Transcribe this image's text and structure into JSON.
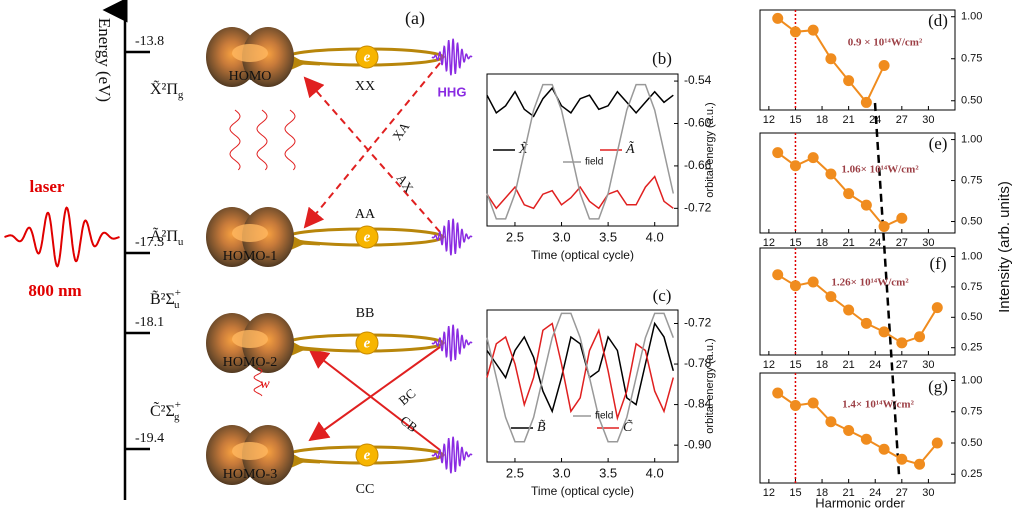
{
  "diagram": {
    "panel_label": "(a)",
    "axis_label": "Energy (eV)",
    "levels": [
      {
        "energy": "-13.8",
        "state": {
          "main": "X̃²Π",
          "sub": "g"
        }
      },
      {
        "energy": "-17.3",
        "state": {
          "main": "Ã²Π",
          "sub": "u"
        }
      },
      {
        "energy": "-18.1",
        "state": {
          "main": "B̃²Σ",
          "sub": "u",
          "sup": "+"
        }
      },
      {
        "energy": "-19.4",
        "state": {
          "main": "C̃²Σ",
          "sub": "g",
          "sup": "+"
        }
      }
    ],
    "orbitals": [
      "HOMO",
      "HOMO-1",
      "HOMO-2",
      "HOMO-3"
    ],
    "electron": "e",
    "channels": {
      "XX": "XX",
      "AA": "AA",
      "BB": "BB",
      "CC": "CC",
      "XA": "XA",
      "AX": "AX",
      "BC": "BC",
      "CB": "CB"
    },
    "hhg": "HHG",
    "laser": "laser",
    "wavelength": "800 nm",
    "coupling": "w"
  },
  "shared": {
    "ylabel": "Intensity (arb. units)",
    "xlabel": "Harmonic order"
  },
  "chart_data": [
    {
      "type": "line",
      "panel_label": "(b)",
      "xlabel": "Time (optical cycle)",
      "ylabel": "orbital energy (a.u.)",
      "x": [
        2.2,
        2.3,
        2.4,
        2.5,
        2.6,
        2.7,
        2.8,
        2.9,
        3.0,
        3.1,
        3.2,
        3.3,
        3.4,
        3.5,
        3.6,
        3.7,
        3.8,
        3.9,
        4.0,
        4.1,
        4.2
      ],
      "xlim": [
        2.2,
        4.25
      ],
      "xticks": [
        2.5,
        {
          "value": 3,
          "label": "3.0"
        },
        3.5,
        {
          "value": 4,
          "label": "4.0"
        }
      ],
      "ylim": [
        -0.745,
        -0.53
      ],
      "yticks": [
        -0.54,
        {
          "value": -0.6,
          "label": "-0.60"
        },
        -0.66,
        -0.72
      ],
      "series": [
        {
          "name": "X̃",
          "color": "#000000",
          "values": [
            -0.56,
            -0.585,
            -0.575,
            -0.555,
            -0.58,
            -0.59,
            -0.565,
            -0.55,
            -0.575,
            -0.585,
            -0.565,
            -0.56,
            -0.58,
            -0.575,
            -0.555,
            -0.57,
            -0.585,
            -0.57,
            -0.555,
            -0.57,
            -0.56
          ]
        },
        {
          "name": "Ã",
          "color": "#e02020",
          "values": [
            -0.7,
            -0.72,
            -0.705,
            -0.69,
            -0.715,
            -0.72,
            -0.7,
            -0.695,
            -0.715,
            -0.705,
            -0.69,
            -0.71,
            -0.72,
            -0.7,
            -0.695,
            -0.715,
            -0.715,
            -0.69,
            -0.675,
            -0.71,
            -0.72
          ]
        },
        {
          "name": "field",
          "color": "#999999",
          "values": [
            -0.699,
            -0.735,
            -0.735,
            -0.699,
            -0.64,
            -0.581,
            -0.545,
            -0.545,
            -0.581,
            -0.64,
            -0.699,
            -0.735,
            -0.735,
            -0.699,
            -0.64,
            -0.581,
            -0.545,
            -0.545,
            -0.581,
            -0.64,
            -0.699
          ]
        }
      ]
    },
    {
      "type": "line",
      "panel_label": "(c)",
      "xlabel": "Time (optical cycle)",
      "ylabel": "orbital energy (a.u.)",
      "x": [
        2.2,
        2.3,
        2.4,
        2.5,
        2.6,
        2.7,
        2.8,
        2.9,
        3.0,
        3.1,
        3.2,
        3.3,
        3.4,
        3.5,
        3.6,
        3.7,
        3.8,
        3.9,
        4.0,
        4.1,
        4.2
      ],
      "xlim": [
        2.2,
        4.25
      ],
      "xticks": [
        2.5,
        {
          "value": 3,
          "label": "3.0"
        },
        3.5,
        {
          "value": 4,
          "label": "4.0"
        }
      ],
      "ylim": [
        -0.925,
        -0.7
      ],
      "yticks": [
        -0.72,
        -0.78,
        -0.84,
        {
          "value": -0.9,
          "label": "-0.90"
        }
      ],
      "series": [
        {
          "name": "B̃",
          "color": "#000000",
          "values": [
            -0.76,
            -0.78,
            -0.8,
            -0.76,
            -0.74,
            -0.77,
            -0.82,
            -0.85,
            -0.8,
            -0.74,
            -0.75,
            -0.8,
            -0.79,
            -0.74,
            -0.76,
            -0.83,
            -0.84,
            -0.78,
            -0.72,
            -0.74,
            -0.79
          ]
        },
        {
          "name": "C̃",
          "color": "#e02020",
          "values": [
            -0.8,
            -0.75,
            -0.74,
            -0.78,
            -0.84,
            -0.8,
            -0.73,
            -0.72,
            -0.78,
            -0.85,
            -0.83,
            -0.76,
            -0.73,
            -0.79,
            -0.86,
            -0.82,
            -0.75,
            -0.76,
            -0.82,
            -0.85,
            -0.8
          ]
        },
        {
          "name": "field",
          "color": "#999999",
          "values": [
            -0.741,
            -0.8,
            -0.859,
            -0.895,
            -0.895,
            -0.859,
            -0.8,
            -0.741,
            -0.705,
            -0.705,
            -0.741,
            -0.8,
            -0.859,
            -0.895,
            -0.895,
            -0.859,
            -0.8,
            -0.741,
            -0.705,
            -0.705,
            -0.741
          ]
        }
      ]
    },
    {
      "type": "marker-line",
      "panel_label": "(d)",
      "annotation": "0.9 × 10¹⁴W/cm²",
      "reference_x": 15,
      "reference_color": "#e00000",
      "x": [
        13,
        15,
        17,
        19,
        21,
        23,
        25
      ],
      "values": [
        0.99,
        0.91,
        0.92,
        0.75,
        0.62,
        0.49,
        0.71
      ],
      "color": "#f08c1e",
      "xlim": [
        11,
        33
      ],
      "xticks": [
        12,
        15,
        18,
        21,
        24,
        27,
        30
      ],
      "ylim": [
        0.445,
        1.04
      ],
      "yticks": [
        {
          "value": 1,
          "label": "1.00"
        },
        0.75,
        {
          "value": 0.5,
          "label": "0.50"
        }
      ]
    },
    {
      "type": "marker-line",
      "panel_label": "(e)",
      "annotation": "1.06× 10¹⁴W/cm²",
      "reference_x": 15,
      "reference_color": "#e00000",
      "x": [
        13,
        15,
        17,
        19,
        21,
        23,
        25,
        27
      ],
      "values": [
        0.92,
        0.84,
        0.89,
        0.79,
        0.67,
        0.6,
        0.47,
        0.52
      ],
      "color": "#f08c1e",
      "xlim": [
        11,
        33
      ],
      "xticks": [
        12,
        15,
        18,
        21,
        24,
        27,
        30
      ],
      "ylim": [
        0.43,
        1.04
      ],
      "yticks": [
        {
          "value": 1,
          "label": "1.00"
        },
        0.75,
        {
          "value": 0.5,
          "label": "0.50"
        }
      ]
    },
    {
      "type": "marker-line",
      "panel_label": "(f)",
      "annotation": "1.26× 10¹⁴W/cm²",
      "reference_x": 15,
      "reference_color": "#e00000",
      "x": [
        13,
        15,
        17,
        19,
        21,
        23,
        25,
        27,
        29,
        31
      ],
      "values": [
        0.85,
        0.76,
        0.79,
        0.67,
        0.56,
        0.45,
        0.38,
        0.29,
        0.34,
        0.58
      ],
      "color": "#f08c1e",
      "xlim": [
        11,
        33
      ],
      "xticks": [
        12,
        15,
        18,
        21,
        24,
        27,
        30
      ],
      "ylim": [
        0.19,
        1.07
      ],
      "yticks": [
        {
          "value": 1,
          "label": "1.00"
        },
        0.75,
        {
          "value": 0.5,
          "label": "0.50"
        },
        0.25
      ]
    },
    {
      "type": "marker-line",
      "panel_label": "(g)",
      "annotation": "1.4× 10¹⁴W/cm²",
      "reference_x": 15,
      "reference_color": "#e00000",
      "x": [
        13,
        15,
        17,
        19,
        21,
        23,
        25,
        27,
        29,
        31
      ],
      "values": [
        0.9,
        0.8,
        0.82,
        0.67,
        0.6,
        0.53,
        0.45,
        0.37,
        0.33,
        0.5
      ],
      "color": "#f08c1e",
      "xlim": [
        11,
        33
      ],
      "xticks": [
        12,
        15,
        18,
        21,
        24,
        27,
        30
      ],
      "ylim": [
        0.18,
        1.06
      ],
      "yticks": [
        {
          "value": 1,
          "label": "1.00"
        },
        0.75,
        {
          "value": 0.5,
          "label": "0.50"
        },
        0.25
      ]
    }
  ]
}
